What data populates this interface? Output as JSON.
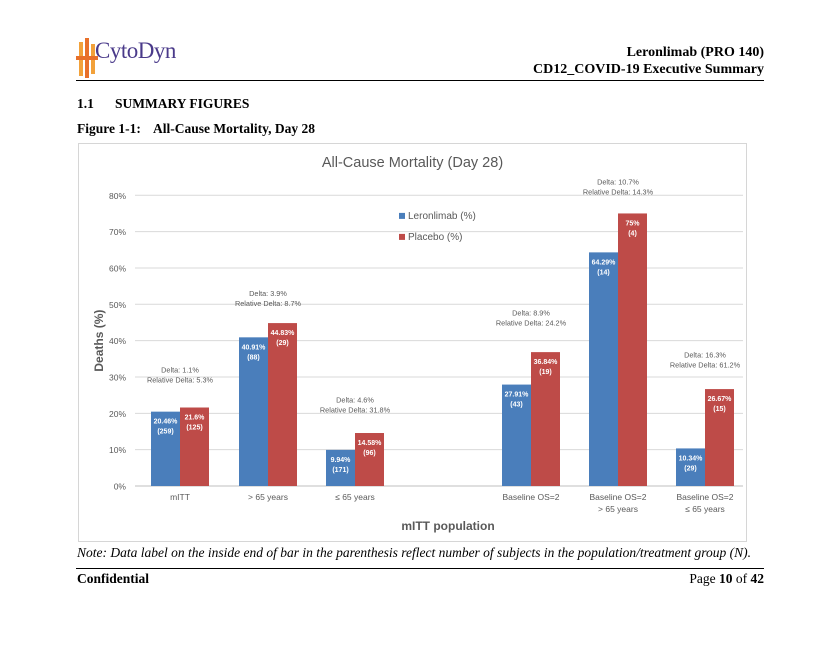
{
  "header": {
    "company": "CytoDyn",
    "title_line1": "Leronlimab (PRO 140)",
    "title_line2": "CD12_COVID-19 Executive Summary"
  },
  "section": {
    "number": "1.1",
    "title": "SUMMARY FIGURES"
  },
  "figure": {
    "label": "Figure 1-1:",
    "caption": "All-Cause Mortality, Day 28"
  },
  "note": "Note: Data label on the inside end of bar in the parenthesis reflect number of subjects in the population/treatment group (N).",
  "footer": {
    "left": "Confidential",
    "page_prefix": "Page",
    "page_num": "10",
    "page_of": "of",
    "page_total": "42"
  },
  "colors": {
    "leronlimab": "#4a7ebb",
    "placebo": "#be4b48",
    "grid": "#d9d9d9",
    "text": "#595959"
  },
  "chart_data": {
    "type": "bar",
    "title": "All-Cause Mortality (Day 28)",
    "xlabel": "mITT population",
    "ylabel": "Deaths (%)",
    "ylim": [
      0,
      85
    ],
    "yticks": [
      0,
      10,
      20,
      30,
      40,
      50,
      60,
      70,
      80
    ],
    "ytick_labels": [
      "0%",
      "10%",
      "20%",
      "30%",
      "40%",
      "50%",
      "60%",
      "70%",
      "80%"
    ],
    "legend": {
      "placement": "top-center",
      "entries": [
        "Leronlimab (%)",
        "Placebo (%)"
      ]
    },
    "categories": [
      {
        "line1": "mITT",
        "line2": ""
      },
      {
        "line1": "> 65 years",
        "line2": ""
      },
      {
        "line1": "≤ 65 years",
        "line2": ""
      },
      {
        "line1": "Baseline OS=2",
        "line2": ""
      },
      {
        "line1": "Baseline OS=2",
        "line2": "> 65 years"
      },
      {
        "line1": "Baseline OS=2",
        "line2": "≤ 65 years"
      }
    ],
    "series": [
      {
        "name": "Leronlimab (%)",
        "values": [
          20.46,
          40.91,
          9.94,
          27.91,
          64.29,
          10.34
        ],
        "labels": [
          "20.46%",
          "40.91%",
          "9.94%",
          "27.91%",
          "64.29%",
          "10.34%"
        ],
        "n": [
          "(259)",
          "(88)",
          "(171)",
          "(43)",
          "(14)",
          "(29)"
        ]
      },
      {
        "name": "Placebo (%)",
        "values": [
          21.6,
          44.83,
          14.58,
          36.84,
          75,
          26.67
        ],
        "labels": [
          "21.6%",
          "44.83%",
          "14.58%",
          "36.84%",
          "75%",
          "26.67%"
        ],
        "n": [
          "(125)",
          "(29)",
          "(96)",
          "(19)",
          "(4)",
          "(15)"
        ]
      }
    ],
    "annotations": [
      {
        "delta": "Delta: 1.1%",
        "relative": "Relative Delta: 5.3%"
      },
      {
        "delta": "Delta: 3.9%",
        "relative": "Relative Delta: 8.7%"
      },
      {
        "delta": "Delta: 4.6%",
        "relative": "Relative Delta: 31.8%"
      },
      {
        "delta": "Delta: 8.9%",
        "relative": "Relative Delta: 24.2%"
      },
      {
        "delta": "Delta: 10.7%",
        "relative": "Relative Delta: 14.3%"
      },
      {
        "delta": "Delta: 16.3%",
        "relative": "Relative Delta: 61.2%"
      }
    ]
  }
}
